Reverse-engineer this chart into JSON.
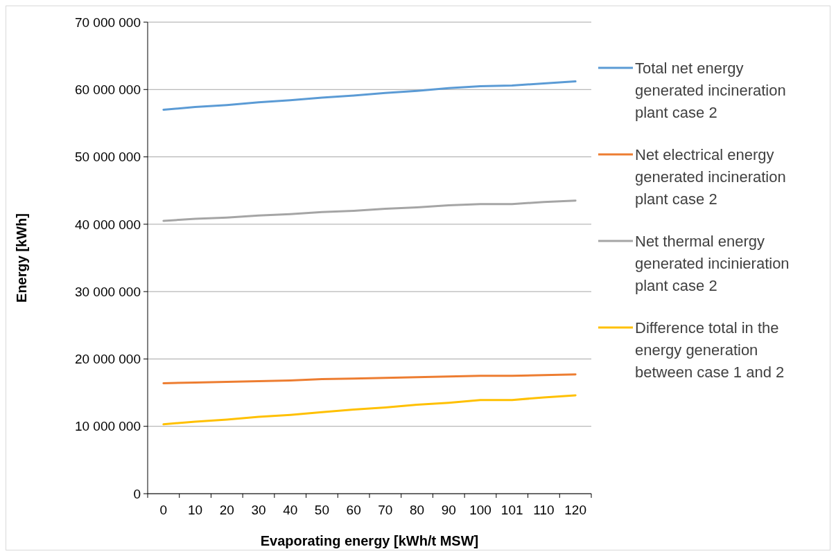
{
  "chart_data": {
    "type": "line",
    "xlabel": "Evaporating energy [kWh/t MSW]",
    "ylabel": "Energy [kWh]",
    "categories": [
      "0",
      "10",
      "20",
      "30",
      "40",
      "50",
      "60",
      "70",
      "80",
      "90",
      "100",
      "101",
      "110",
      "120"
    ],
    "ylim": [
      0,
      70000000
    ],
    "yticks": [
      {
        "value": 0,
        "label": "0"
      },
      {
        "value": 10000000,
        "label": "10 000 000"
      },
      {
        "value": 20000000,
        "label": "20 000 000"
      },
      {
        "value": 30000000,
        "label": "30 000 000"
      },
      {
        "value": 40000000,
        "label": "40 000 000"
      },
      {
        "value": 50000000,
        "label": "50 000 000"
      },
      {
        "value": 60000000,
        "label": "60 000 000"
      },
      {
        "value": 70000000,
        "label": "70 000 000"
      }
    ],
    "grid": "y",
    "legend": "right",
    "marker": "none",
    "line_style": "solid",
    "series": [
      {
        "name": "Total net energy generated incineration plant case 2",
        "color": "#5b9bd5",
        "values": [
          57000000,
          57400000,
          57700000,
          58100000,
          58400000,
          58800000,
          59100000,
          59500000,
          59800000,
          60200000,
          60500000,
          60600000,
          60900000,
          61200000
        ]
      },
      {
        "name": "Net electrical energy generated incineration plant case 2",
        "color": "#ed7d31",
        "values": [
          16400000,
          16500000,
          16600000,
          16700000,
          16800000,
          17000000,
          17100000,
          17200000,
          17300000,
          17400000,
          17500000,
          17500000,
          17600000,
          17700000
        ]
      },
      {
        "name": "Net thermal energy generated incinieration plant case 2",
        "color": "#a5a5a5",
        "values": [
          40500000,
          40800000,
          41000000,
          41300000,
          41500000,
          41800000,
          42000000,
          42300000,
          42500000,
          42800000,
          43000000,
          43000000,
          43300000,
          43500000
        ]
      },
      {
        "name": "Difference total in the energy generation between case 1 and 2",
        "color": "#ffc000",
        "values": [
          10300000,
          10700000,
          11000000,
          11400000,
          11700000,
          12100000,
          12500000,
          12800000,
          13200000,
          13500000,
          13900000,
          13900000,
          14300000,
          14600000
        ]
      }
    ]
  }
}
